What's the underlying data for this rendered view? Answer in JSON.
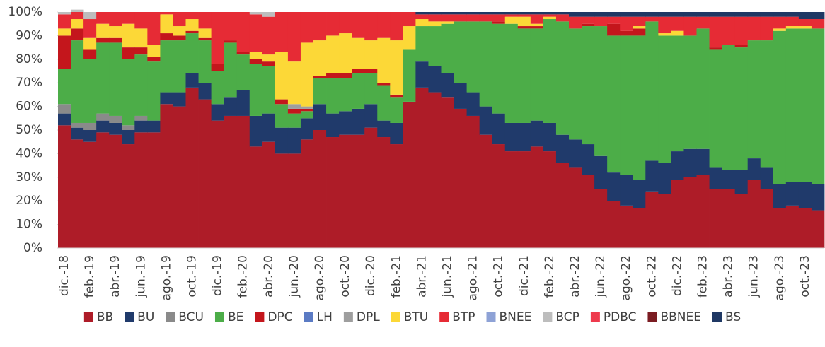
{
  "chart_data": {
    "type": "stacked_bar",
    "categories": [
      "dic.-18",
      null,
      "feb.-19",
      null,
      "abr.-19",
      null,
      "jun.-19",
      null,
      "ago.-19",
      null,
      "oct.-19",
      null,
      "dic.-19",
      null,
      "feb.-20",
      null,
      "abr.-20",
      null,
      "jun.-20",
      null,
      "ago.-20",
      null,
      "oct.-20",
      null,
      "dic.-20",
      null,
      "feb.-21",
      null,
      "abr.-21",
      null,
      "jun.-21",
      null,
      "ago.-21",
      null,
      "oct.-21",
      null,
      "dic.-21",
      null,
      "feb.-22",
      null,
      "abr.-22",
      null,
      "jun.-22",
      null,
      "ago.-22",
      null,
      "oct.-22",
      null,
      "dic.-22",
      null,
      "feb.-23",
      null,
      "abr.-23",
      null,
      "jun.-23",
      null,
      "ago.-23",
      null,
      "oct.-23",
      null
    ],
    "series": [
      {
        "name": "BB",
        "color": "#ae1c28",
        "values": [
          52,
          46,
          45,
          49,
          48,
          44,
          49,
          49,
          61,
          60,
          68,
          63,
          54,
          56,
          56,
          43,
          45,
          40,
          40,
          46,
          50,
          47,
          48,
          48,
          51,
          47,
          44,
          62,
          68,
          66,
          64,
          59,
          56,
          48,
          44,
          41,
          41,
          43,
          41,
          36,
          34,
          31,
          25,
          20,
          18,
          17,
          24,
          23,
          29,
          30,
          31,
          25,
          25,
          23,
          29,
          25,
          17,
          18,
          17,
          16
        ]
      },
      {
        "name": "BU",
        "color": "#203a6b",
        "values": [
          5,
          5,
          5,
          5,
          5,
          6,
          5,
          5,
          5,
          6,
          6,
          7,
          7,
          8,
          11,
          13,
          12,
          11,
          11,
          9,
          11,
          10,
          10,
          11,
          10,
          7,
          9,
          0,
          11,
          11,
          10,
          11,
          10,
          12,
          13,
          12,
          12,
          11,
          12,
          12,
          12,
          13,
          14,
          12,
          13,
          12,
          13,
          13,
          12,
          12,
          11,
          9,
          8,
          10,
          9,
          9,
          10,
          10,
          11,
          11
        ]
      },
      {
        "name": "BCU",
        "color": "#8a8a8a",
        "values": [
          4,
          2,
          3,
          3,
          3,
          2,
          2,
          0,
          0,
          0,
          0,
          0,
          0,
          0,
          0,
          0,
          0,
          0,
          0,
          0,
          0,
          0,
          0,
          0,
          0,
          0,
          0,
          0,
          0,
          0,
          0,
          0,
          0,
          0,
          0,
          0,
          0,
          0,
          0,
          0,
          0,
          0,
          0,
          0,
          0,
          0,
          0,
          0,
          0,
          0,
          0,
          0,
          0,
          0,
          0,
          0,
          0,
          0,
          0,
          0
        ]
      },
      {
        "name": "BE",
        "color": "#4cad48",
        "values": [
          15,
          35,
          27,
          30,
          31,
          28,
          26,
          25,
          22,
          22,
          17,
          18,
          14,
          23,
          15,
          22,
          20,
          10,
          6,
          3,
          11,
          15,
          14,
          15,
          13,
          15,
          11,
          22,
          15,
          17,
          21,
          26,
          30,
          36,
          38,
          42,
          40,
          39,
          44,
          48,
          47,
          50,
          55,
          58,
          59,
          61,
          59,
          54,
          49,
          48,
          51,
          50,
          53,
          52,
          50,
          54,
          65,
          65,
          65,
          66
        ]
      },
      {
        "name": "DPC",
        "color": "#c4161c",
        "values": [
          14,
          5,
          4,
          2,
          2,
          5,
          3,
          2,
          3,
          2,
          1,
          1,
          3,
          1,
          1,
          2,
          2,
          2,
          2,
          1,
          1,
          2,
          2,
          2,
          2,
          1,
          1,
          0,
          0,
          0,
          0,
          0,
          0,
          0,
          1,
          0,
          1,
          1,
          0,
          0,
          0,
          1,
          0,
          5,
          2,
          3,
          0,
          0,
          0,
          0,
          0,
          1,
          0,
          1,
          0,
          0,
          0,
          0,
          0,
          0
        ]
      },
      {
        "name": "LH",
        "color": "#5b7bc4",
        "values": [
          0,
          0,
          0,
          0,
          0,
          0,
          0,
          0,
          0,
          0,
          0,
          0,
          0,
          0,
          0,
          0,
          0,
          0,
          0,
          0,
          0,
          0,
          0,
          0,
          0,
          0,
          0,
          0,
          0,
          0,
          0,
          0,
          0,
          0,
          0,
          0,
          0,
          0,
          0,
          0,
          0,
          0,
          0,
          0,
          0,
          0,
          0,
          0,
          0,
          0,
          0,
          0,
          0,
          0,
          0,
          0,
          0,
          0,
          0,
          0
        ]
      },
      {
        "name": "DPL",
        "color": "#9e9e9e",
        "values": [
          0,
          0,
          0,
          0,
          0,
          0,
          0,
          0,
          0,
          0,
          0,
          0,
          0,
          0,
          0,
          0,
          0,
          0,
          2,
          1,
          0,
          0,
          0,
          0,
          0,
          0,
          0,
          0,
          0,
          0,
          0,
          0,
          0,
          0,
          0,
          0,
          0,
          0,
          0,
          0,
          0,
          0,
          0,
          0,
          0,
          0,
          0,
          0,
          0,
          0,
          0,
          0,
          0,
          0,
          0,
          0,
          0,
          0,
          0,
          0
        ]
      },
      {
        "name": "BTU",
        "color": "#fcd837",
        "values": [
          3,
          4,
          5,
          6,
          5,
          10,
          8,
          5,
          8,
          4,
          5,
          4,
          0,
          0,
          0,
          3,
          3,
          20,
          18,
          27,
          15,
          16,
          17,
          13,
          12,
          19,
          23,
          10,
          3,
          2,
          1,
          0,
          0,
          0,
          0,
          3,
          4,
          1,
          1,
          0,
          0,
          0,
          0,
          0,
          0,
          1,
          0,
          1,
          2,
          0,
          0,
          0,
          0,
          0,
          0,
          0,
          1,
          1,
          1,
          0
        ]
      },
      {
        "name": "BTP",
        "color": "#e62b35",
        "values": [
          6,
          3,
          8,
          5,
          6,
          5,
          7,
          14,
          1,
          6,
          3,
          7,
          22,
          12,
          17,
          16,
          16,
          17,
          21,
          13,
          12,
          10,
          9,
          11,
          12,
          11,
          12,
          6,
          2,
          3,
          3,
          3,
          3,
          3,
          3,
          1,
          1,
          4,
          1,
          3,
          5,
          3,
          4,
          3,
          6,
          4,
          2,
          7,
          6,
          8,
          5,
          13,
          12,
          12,
          10,
          10,
          5,
          4,
          3,
          4
        ]
      },
      {
        "name": "BNEE",
        "color": "#8ea2d6",
        "values": [
          0,
          0,
          0,
          0,
          0,
          0,
          0,
          0,
          0,
          0,
          0,
          0,
          0,
          0,
          0,
          0,
          0,
          0,
          0,
          0,
          0,
          0,
          0,
          0,
          0,
          0,
          0,
          0,
          0,
          0,
          0,
          0,
          0,
          0,
          0,
          0,
          0,
          0,
          0,
          0,
          0,
          0,
          0,
          0,
          0,
          0,
          0,
          0,
          0,
          0,
          0,
          0,
          0,
          0,
          0,
          0,
          0,
          0,
          0,
          0
        ]
      },
      {
        "name": "BCP",
        "color": "#bdbdbd",
        "values": [
          1,
          1,
          3,
          0,
          0,
          0,
          0,
          0,
          0,
          0,
          0,
          0,
          0,
          0,
          0,
          1,
          2,
          0,
          0,
          0,
          0,
          0,
          0,
          0,
          0,
          0,
          0,
          0,
          0,
          0,
          0,
          0,
          0,
          0,
          0,
          0,
          0,
          0,
          0,
          0,
          0,
          0,
          0,
          0,
          0,
          0,
          0,
          0,
          0,
          0,
          0,
          0,
          0,
          0,
          0,
          0,
          0,
          0,
          0,
          0
        ]
      },
      {
        "name": "PDBC",
        "color": "#ee3a4d",
        "values": [
          0,
          0,
          0,
          0,
          0,
          0,
          0,
          0,
          0,
          0,
          0,
          0,
          0,
          0,
          0,
          0,
          0,
          0,
          0,
          0,
          0,
          0,
          0,
          0,
          0,
          0,
          0,
          0,
          0,
          0,
          0,
          0,
          0,
          0,
          0,
          0,
          0,
          0,
          0,
          0,
          0,
          0,
          0,
          0,
          0,
          0,
          0,
          0,
          0,
          0,
          0,
          0,
          0,
          0,
          0,
          0,
          0,
          0,
          0,
          0
        ]
      },
      {
        "name": "BBNEE",
        "color": "#7b1c22",
        "values": [
          0,
          0,
          0,
          0,
          0,
          0,
          0,
          0,
          0,
          0,
          0,
          0,
          0,
          0,
          0,
          0,
          0,
          0,
          0,
          0,
          0,
          0,
          0,
          0,
          0,
          0,
          0,
          0,
          0,
          0,
          0,
          0,
          0,
          0,
          0,
          0,
          0,
          0,
          0,
          0,
          0,
          0,
          0,
          0,
          0,
          0,
          0,
          0,
          0,
          0,
          0,
          0,
          0,
          0,
          0,
          0,
          0,
          0,
          0,
          0
        ]
      },
      {
        "name": "BS",
        "color": "#1f3864",
        "values": [
          0,
          0,
          0,
          0,
          0,
          0,
          0,
          0,
          0,
          0,
          0,
          0,
          0,
          0,
          0,
          0,
          0,
          0,
          0,
          0,
          0,
          0,
          0,
          0,
          0,
          0,
          0,
          0,
          1,
          1,
          1,
          1,
          1,
          1,
          1,
          1,
          1,
          1,
          1,
          1,
          2,
          2,
          2,
          2,
          2,
          2,
          2,
          2,
          2,
          2,
          2,
          2,
          2,
          2,
          2,
          2,
          2,
          2,
          3,
          3
        ]
      }
    ],
    "ylim": [
      0,
      100
    ],
    "yticks": [
      {
        "value": 0,
        "label": "0%"
      },
      {
        "value": 10,
        "label": "10%"
      },
      {
        "value": 20,
        "label": "20%"
      },
      {
        "value": 30,
        "label": "30%"
      },
      {
        "value": 40,
        "label": "40%"
      },
      {
        "value": 50,
        "label": "50%"
      },
      {
        "value": 60,
        "label": "60%"
      },
      {
        "value": 70,
        "label": "70%"
      },
      {
        "value": 80,
        "label": "80%"
      },
      {
        "value": 90,
        "label": "90%"
      },
      {
        "value": 100,
        "label": "100%"
      }
    ],
    "legend": "bottom"
  }
}
